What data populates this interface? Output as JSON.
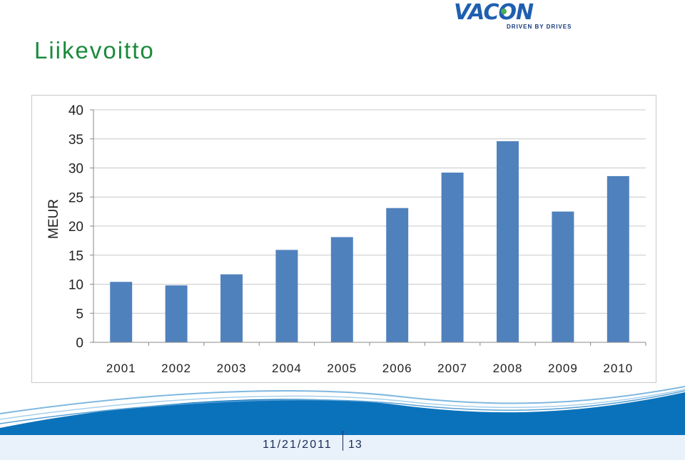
{
  "slide": {
    "title": "Liikevoitto",
    "logo_text": "VACON",
    "logo_tagline": "DRIVEN BY DRIVES",
    "footer_date": "11/21/2011",
    "footer_page": "13",
    "title_color": "#1a8a3c",
    "footer_color": "#0a72bb"
  },
  "chart_data": {
    "type": "bar",
    "title": "",
    "xlabel": "",
    "ylabel": "MEUR",
    "categories": [
      "2001",
      "2002",
      "2003",
      "2004",
      "2005",
      "2006",
      "2007",
      "2008",
      "2009",
      "2010"
    ],
    "values": [
      10.4,
      9.8,
      11.7,
      15.9,
      18.1,
      23.1,
      29.2,
      34.6,
      22.5,
      28.6
    ],
    "ylim": [
      0,
      40
    ],
    "yticks": [
      0,
      5,
      10,
      15,
      20,
      25,
      30,
      35,
      40
    ],
    "grid": true,
    "legend": "none",
    "bar_color": "#4f81bd"
  }
}
